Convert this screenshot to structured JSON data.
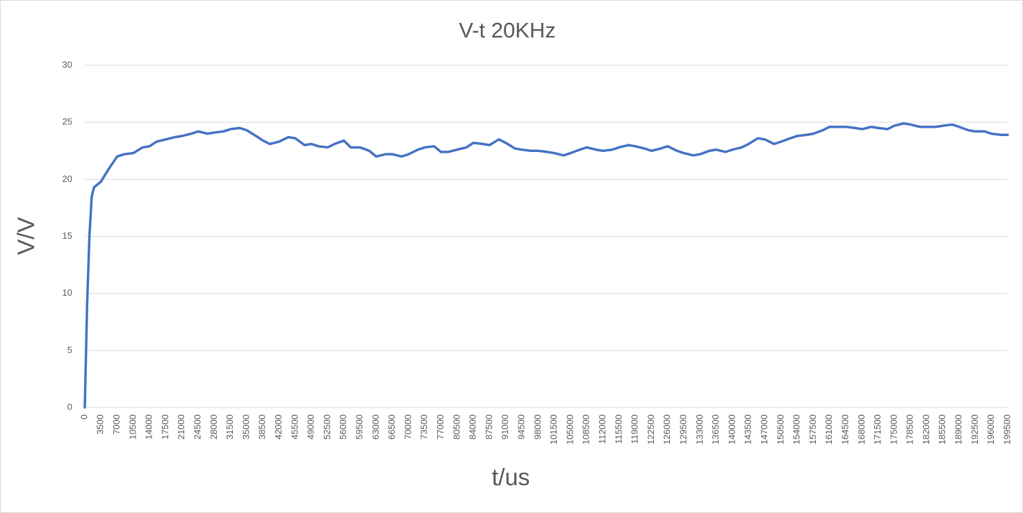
{
  "chart_data": {
    "type": "line",
    "title": "V-t 20KHz",
    "x_label": "t/us",
    "y_label": "V/V",
    "color": "#4472c4",
    "grid": true,
    "x": [
      0,
      500,
      1000,
      1500,
      2000,
      3500,
      5000,
      7000,
      8500,
      10500,
      12500,
      14000,
      15500,
      17500,
      19500,
      21000,
      23000,
      24500,
      26500,
      28000,
      30000,
      31500,
      33500,
      35000,
      37000,
      38500,
      40000,
      42000,
      44000,
      45500,
      47500,
      49000,
      50500,
      52500,
      54000,
      56000,
      57500,
      59500,
      61500,
      63000,
      65000,
      66500,
      68500,
      70000,
      72000,
      73500,
      75500,
      77000,
      78500,
      80500,
      82500,
      84000,
      86000,
      87500,
      89500,
      91000,
      93000,
      94500,
      96500,
      98000,
      100000,
      101500,
      103500,
      105000,
      107000,
      108500,
      110500,
      112000,
      114000,
      115500,
      117500,
      119000,
      121000,
      122500,
      124500,
      126000,
      128000,
      129500,
      131500,
      133000,
      135000,
      136500,
      138500,
      140000,
      142000,
      143500,
      145500,
      147000,
      149000,
      150500,
      152500,
      154000,
      156000,
      157500,
      159500,
      161000,
      163000,
      164500,
      166500,
      168000,
      170000,
      171500,
      173500,
      175000,
      177000,
      178500,
      180500,
      182000,
      184000,
      185500,
      187500,
      189000,
      191000,
      192500,
      194500,
      196000,
      198000,
      199500
    ],
    "values": [
      0,
      9,
      15,
      18.5,
      19.3,
      19.8,
      20.8,
      22.0,
      22.2,
      22.3,
      22.8,
      22.9,
      23.3,
      23.5,
      23.7,
      23.8,
      24.0,
      24.2,
      24.0,
      24.1,
      24.2,
      24.4,
      24.5,
      24.3,
      23.8,
      23.4,
      23.1,
      23.3,
      23.7,
      23.6,
      23.0,
      23.1,
      22.9,
      22.8,
      23.1,
      23.4,
      22.8,
      22.8,
      22.5,
      22.0,
      22.2,
      22.2,
      22.0,
      22.2,
      22.6,
      22.8,
      22.9,
      22.4,
      22.4,
      22.6,
      22.8,
      23.2,
      23.1,
      23.0,
      23.5,
      23.2,
      22.7,
      22.6,
      22.5,
      22.5,
      22.4,
      22.3,
      22.1,
      22.3,
      22.6,
      22.8,
      22.6,
      22.5,
      22.6,
      22.8,
      23.0,
      22.9,
      22.7,
      22.5,
      22.7,
      22.9,
      22.5,
      22.3,
      22.1,
      22.2,
      22.5,
      22.6,
      22.4,
      22.6,
      22.8,
      23.1,
      23.6,
      23.5,
      23.1,
      23.3,
      23.6,
      23.8,
      23.9,
      24.0,
      24.3,
      24.6,
      24.6,
      24.6,
      24.5,
      24.4,
      24.6,
      24.5,
      24.4,
      24.7,
      24.9,
      24.8,
      24.6,
      24.6,
      24.6,
      24.7,
      24.8,
      24.6,
      24.3,
      24.2,
      24.2,
      24.0,
      23.9,
      23.9
    ],
    "xlim": [
      0,
      199500
    ],
    "xticks": [
      0,
      3500,
      7000,
      10500,
      14000,
      17500,
      21000,
      24500,
      28000,
      31500,
      35000,
      38500,
      42000,
      45500,
      49000,
      52500,
      56000,
      59500,
      63000,
      66500,
      70000,
      73500,
      77000,
      80500,
      84000,
      87500,
      91000,
      94500,
      98000,
      101500,
      105000,
      108500,
      112000,
      115500,
      119000,
      122500,
      126000,
      129500,
      133000,
      136500,
      140000,
      143500,
      147000,
      150500,
      154000,
      157500,
      161000,
      164500,
      168000,
      171500,
      175000,
      178500,
      182000,
      185500,
      189000,
      192500,
      196000,
      199500
    ],
    "ylim": [
      0,
      30
    ],
    "yticks": [
      0,
      5,
      10,
      15,
      20,
      25,
      30
    ]
  }
}
